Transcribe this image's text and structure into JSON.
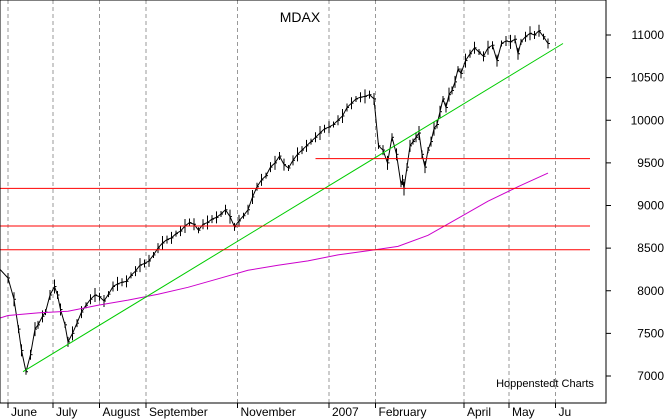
{
  "chart_data": {
    "type": "line",
    "title": "MDAX",
    "source_note": "Hoppenstedt Charts",
    "ylim": [
      6850,
      11200
    ],
    "x_range_days": [
      0,
      388
    ],
    "month_labels": [
      "June",
      "July",
      "August",
      "September",
      "November",
      "2007",
      "February",
      "April",
      "May",
      "Ju"
    ],
    "month_days": [
      0,
      30,
      61,
      92,
      153,
      214,
      245,
      304,
      334,
      365
    ],
    "y_ticks": [
      7000,
      7500,
      8000,
      8500,
      9000,
      9500,
      10000,
      10500,
      11000
    ],
    "grid": true,
    "colors": {
      "price": "#000000",
      "moving_average": "#cc00cc",
      "trend": "#00cc00",
      "horizontal": "#ff0000",
      "grid": "#999999"
    },
    "series": [
      {
        "name": "",
        "role": "price",
        "x": [
          -12,
          0,
          4,
          7,
          9,
          12,
          15,
          18,
          20,
          23,
          25,
          28,
          31,
          33,
          35,
          38,
          40,
          43,
          46,
          49,
          52,
          55,
          58,
          61,
          64,
          67,
          70,
          73,
          76,
          79,
          82,
          85,
          88,
          91,
          94,
          97,
          100,
          103,
          106,
          109,
          112,
          115,
          118,
          121,
          124,
          127,
          130,
          133,
          136,
          139,
          142,
          145,
          148,
          151,
          154,
          157,
          160,
          163,
          166,
          169,
          172,
          175,
          178,
          181,
          184,
          187,
          190,
          193,
          196,
          199,
          202,
          205,
          208,
          211,
          214,
          217,
          220,
          223,
          226,
          229,
          232,
          235,
          238,
          241,
          244,
          247,
          250,
          253,
          256,
          259,
          262,
          263,
          264,
          266,
          268,
          270,
          272,
          274,
          276,
          278,
          280,
          282,
          284,
          286,
          288,
          290,
          292,
          294,
          296,
          298,
          300,
          302,
          305,
          308,
          311,
          314,
          317,
          320,
          323,
          326,
          329,
          332,
          335,
          338,
          340,
          342,
          345,
          348,
          351,
          354,
          357,
          360
        ],
        "values": [
          8250,
          8150,
          7900,
          7550,
          7300,
          7050,
          7250,
          7550,
          7600,
          7700,
          7750,
          7950,
          8050,
          7950,
          7780,
          7600,
          7400,
          7500,
          7620,
          7750,
          7830,
          7900,
          7950,
          7930,
          7880,
          7960,
          8050,
          8080,
          8100,
          8110,
          8180,
          8230,
          8300,
          8320,
          8350,
          8420,
          8500,
          8560,
          8600,
          8620,
          8670,
          8700,
          8760,
          8800,
          8780,
          8710,
          8780,
          8800,
          8840,
          8860,
          8900,
          8950,
          8870,
          8750,
          8820,
          8880,
          8950,
          9100,
          9220,
          9300,
          9350,
          9450,
          9500,
          9580,
          9480,
          9440,
          9530,
          9600,
          9650,
          9700,
          9750,
          9800,
          9850,
          9900,
          9920,
          9950,
          10000,
          10050,
          10150,
          10200,
          10250,
          10270,
          10280,
          10300,
          10250,
          9700,
          9650,
          9500,
          9800,
          9600,
          9250,
          9300,
          9200,
          9450,
          9700,
          9750,
          9800,
          9850,
          9600,
          9450,
          9650,
          9750,
          9900,
          9950,
          10100,
          10250,
          10150,
          10300,
          10350,
          10450,
          10600,
          10550,
          10700,
          10780,
          10850,
          10800,
          10750,
          10850,
          10880,
          10700,
          10900,
          10930,
          10920,
          10950,
          10780,
          10920,
          10980,
          11020,
          11000,
          11050,
          10980,
          10900
        ]
      },
      {
        "name": "",
        "role": "moving_average",
        "x": [
          -12,
          0,
          20,
          40,
          60,
          80,
          100,
          120,
          140,
          160,
          180,
          200,
          220,
          240,
          260,
          280,
          300,
          320,
          340,
          360
        ],
        "values": [
          7680,
          7710,
          7740,
          7760,
          7830,
          7890,
          7960,
          8040,
          8140,
          8240,
          8300,
          8350,
          8420,
          8470,
          8520,
          8650,
          8850,
          9050,
          9220,
          9380
        ]
      },
      {
        "name": "",
        "role": "trend",
        "x": [
          10,
          370
        ],
        "values": [
          7050,
          10900
        ]
      },
      {
        "name": "",
        "role": "horizontal",
        "x": [
          -12,
          388
        ],
        "values": [
          9200,
          9200
        ]
      },
      {
        "name": "",
        "role": "horizontal",
        "x": [
          -12,
          388
        ],
        "values": [
          8760,
          8760
        ]
      },
      {
        "name": "",
        "role": "horizontal",
        "x": [
          -12,
          388
        ],
        "values": [
          8480,
          8480
        ]
      },
      {
        "name": "",
        "role": "horizontal",
        "x": [
          205,
          388
        ],
        "values": [
          9550,
          9550
        ]
      }
    ]
  }
}
